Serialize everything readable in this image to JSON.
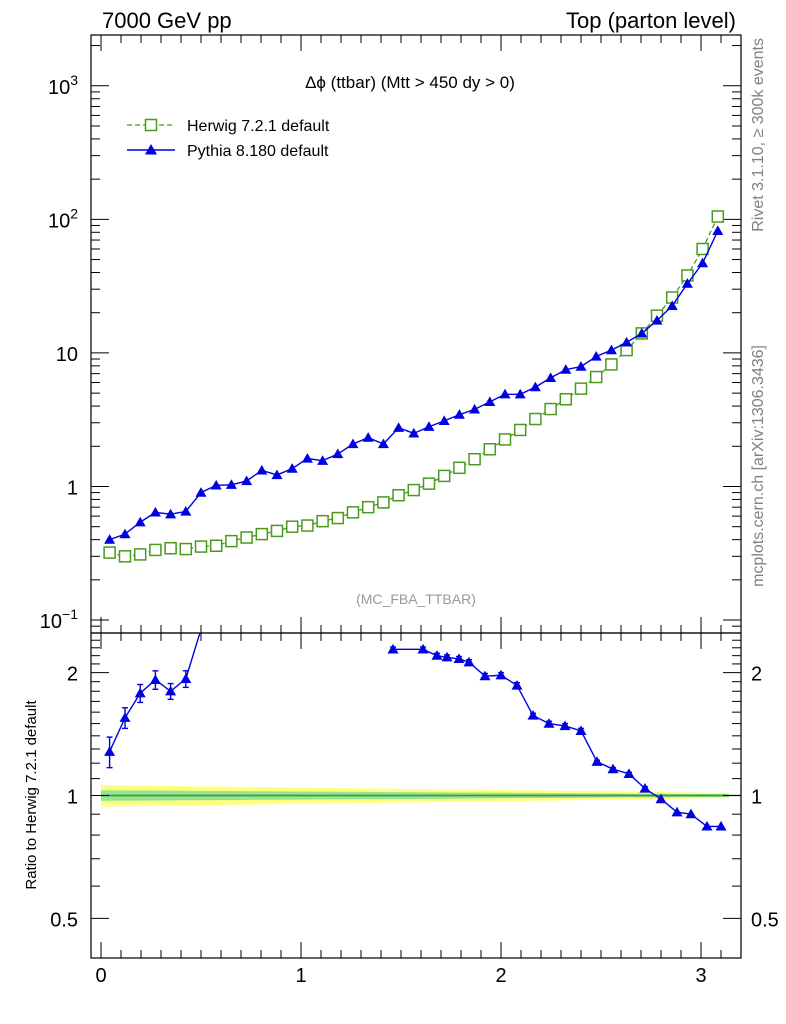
{
  "header": {
    "left": "7000 GeV pp",
    "right": "Top (parton level)"
  },
  "plot_title": "Δϕ (ttbar) (Mtt > 450 dy > 0)",
  "watermark": "(MC_FBA_TTBAR)",
  "side_text": {
    "rivet": "Rivet 3.1.10, ≥ 300k events",
    "mcplots": "mcplots.cern.ch [arXiv:1306.3436]"
  },
  "ratio_ylabel": "Ratio to Herwig 7.2.1 default",
  "colors": {
    "herwig": "#4a9a1e",
    "pythia": "#0000e0",
    "band_outer": "#ffff80",
    "band_inner": "#90e890"
  },
  "chart_data": [
    {
      "type": "line",
      "yscale": "log",
      "xlim": [
        -0.05,
        3.2
      ],
      "ylim": [
        0.08,
        2400
      ],
      "ytick_labels": [
        {
          "base": "10",
          "exp": "−1",
          "value": 0.1
        },
        {
          "base": "1",
          "exp": "",
          "value": 1
        },
        {
          "base": "10",
          "exp": "",
          "value": 10
        },
        {
          "base": "10",
          "exp": "2",
          "value": 100
        },
        {
          "base": "10",
          "exp": "3",
          "value": 1000
        }
      ],
      "x": [
        0.043,
        0.12,
        0.196,
        0.272,
        0.348,
        0.424,
        0.5,
        0.576,
        0.652,
        0.728,
        0.804,
        0.88,
        0.956,
        1.032,
        1.108,
        1.184,
        1.26,
        1.336,
        1.412,
        1.488,
        1.564,
        1.64,
        1.716,
        1.792,
        1.868,
        1.944,
        2.02,
        2.096,
        2.172,
        2.248,
        2.324,
        2.4,
        2.476,
        2.552,
        2.628,
        2.704,
        2.78,
        2.856,
        2.932,
        3.008,
        3.084
      ],
      "series": [
        {
          "name": "Herwig 7.2.1 default",
          "marker": "open-square",
          "linestyle": "dashed",
          "values": [
            0.32,
            0.3,
            0.31,
            0.335,
            0.345,
            0.34,
            0.355,
            0.36,
            0.39,
            0.415,
            0.44,
            0.465,
            0.5,
            0.51,
            0.55,
            0.58,
            0.64,
            0.7,
            0.76,
            0.86,
            0.94,
            1.05,
            1.2,
            1.38,
            1.6,
            1.9,
            2.25,
            2.65,
            3.2,
            3.8,
            4.5,
            5.4,
            6.6,
            8.2,
            10.5,
            14,
            19,
            26,
            38,
            60,
            105
          ]
        },
        {
          "name": "Pythia 8.180 default",
          "marker": "filled-triangle",
          "linestyle": "solid",
          "values": [
            0.4,
            0.44,
            0.54,
            0.64,
            0.62,
            0.65,
            0.9,
            1.02,
            1.03,
            1.1,
            1.32,
            1.22,
            1.36,
            1.62,
            1.56,
            1.75,
            2.08,
            2.32,
            2.08,
            2.75,
            2.5,
            2.8,
            3.1,
            3.45,
            3.78,
            4.3,
            4.9,
            4.9,
            5.55,
            6.5,
            7.5,
            7.9,
            9.4,
            10.5,
            12,
            14,
            17.5,
            22.5,
            33,
            47,
            82
          ]
        }
      ]
    },
    {
      "type": "line",
      "ylabel": "Ratio to Herwig 7.2.1 default",
      "yscale": "log",
      "xlim": [
        -0.05,
        3.2
      ],
      "ylim": [
        0.4,
        2.5
      ],
      "xtick_labels": [
        "0",
        "1",
        "2",
        "3"
      ],
      "ytick_labels": [
        "0.5",
        "1",
        "2"
      ],
      "reference": {
        "name": "Herwig 7.2.1 default",
        "value": 1.0,
        "band_outer": 0.06,
        "band_inner": 0.03
      },
      "x": [
        0.043,
        0.12,
        0.196,
        0.272,
        0.348,
        0.424,
        0.5,
        1.46,
        1.61,
        1.68,
        1.73,
        1.79,
        1.84,
        1.92,
        2.0,
        2.08,
        2.16,
        2.24,
        2.32,
        2.4,
        2.48,
        2.56,
        2.64,
        2.72,
        2.8,
        2.88,
        2.95,
        3.03,
        3.1
      ],
      "series": [
        {
          "name": "Pythia 8.180 default",
          "values": [
            1.28,
            1.55,
            1.78,
            1.92,
            1.8,
            1.93,
            2.55,
            2.28,
            2.28,
            2.2,
            2.18,
            2.16,
            2.12,
            1.96,
            1.97,
            1.86,
            1.57,
            1.5,
            1.48,
            1.44,
            1.21,
            1.16,
            1.13,
            1.04,
            0.98,
            0.91,
            0.9,
            0.84,
            0.84
          ],
          "errors": [
            0.11,
            0.09,
            0.09,
            0.1,
            0.08,
            0.09,
            0,
            0.03,
            0.03,
            0.03,
            0.03,
            0.03,
            0.03,
            0.03,
            0.03,
            0.03,
            0.02,
            0.02,
            0.02,
            0.02,
            0.01,
            0.01,
            0.01,
            0.01,
            0.0,
            0.0,
            0.0,
            0.0,
            0.0
          ]
        }
      ]
    }
  ]
}
